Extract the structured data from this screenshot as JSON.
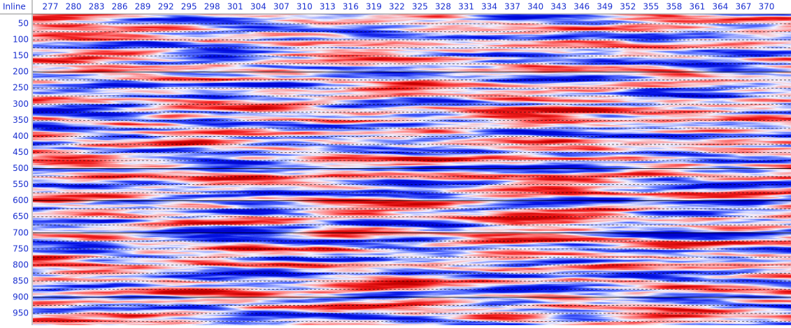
{
  "header": {
    "title": "Inline",
    "columns": [
      "277",
      "280",
      "283",
      "286",
      "289",
      "292",
      "295",
      "298",
      "301",
      "304",
      "307",
      "310",
      "313",
      "316",
      "319",
      "322",
      "325",
      "328",
      "331",
      "334",
      "337",
      "340",
      "343",
      "346",
      "349",
      "352",
      "355",
      "358",
      "361",
      "364",
      "367",
      "370"
    ]
  },
  "rows": [
    "50",
    "100",
    "150",
    "200",
    "250",
    "300",
    "350",
    "400",
    "450",
    "500",
    "550",
    "600",
    "650",
    "700",
    "750",
    "800",
    "850",
    "900",
    "950"
  ]
}
